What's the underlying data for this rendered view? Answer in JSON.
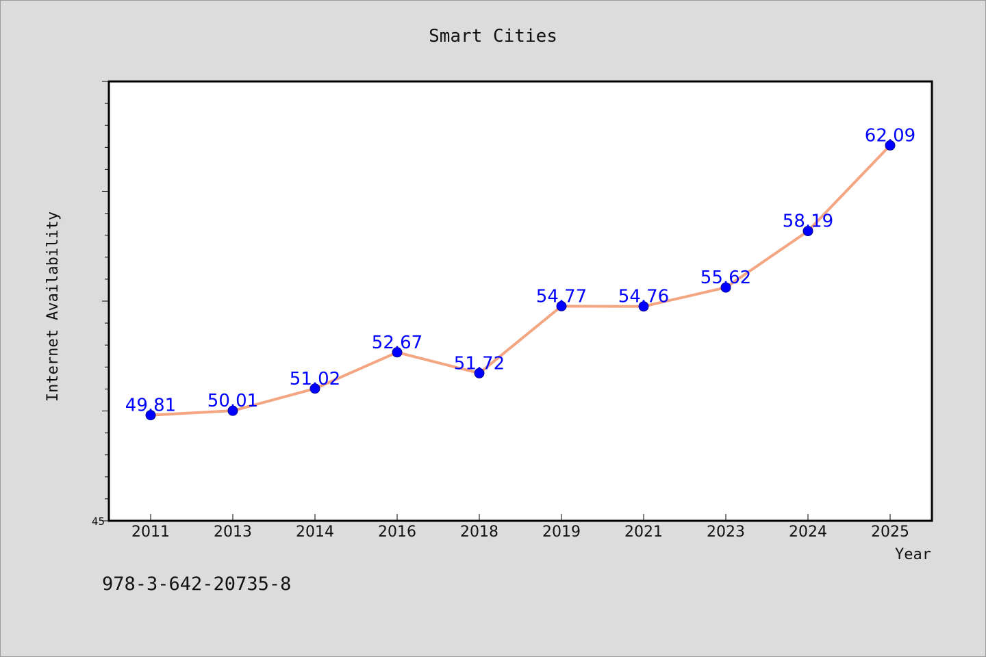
{
  "chart_data": {
    "type": "line",
    "title": "Smart Cities",
    "xlabel": "Year",
    "ylabel": "Internet Availability",
    "categories": [
      "2011",
      "2013",
      "2014",
      "2016",
      "2018",
      "2019",
      "2021",
      "2023",
      "2024",
      "2025"
    ],
    "series": [
      {
        "values": [
          49.81,
          50.01,
          51.02,
          52.67,
          51.72,
          54.77,
          54.76,
          55.62,
          58.19,
          62.09
        ]
      }
    ],
    "data_labels": [
      "49.81",
      "50.01",
      "51.02",
      "52.67",
      "51.72",
      "54.77",
      "54.76",
      "55.62",
      "58.19",
      "62.09"
    ],
    "ylim": [
      45,
      65
    ],
    "yticks_labeled": [
      "45"
    ],
    "grid": false,
    "line_color": "#f4a582",
    "marker_color": "#0000ff",
    "label_color": "#0000ff",
    "background_color": "#dcdcdc",
    "plot_background_color": "#ffffff"
  },
  "footer": {
    "isbn": "978-3-642-20735-8"
  }
}
